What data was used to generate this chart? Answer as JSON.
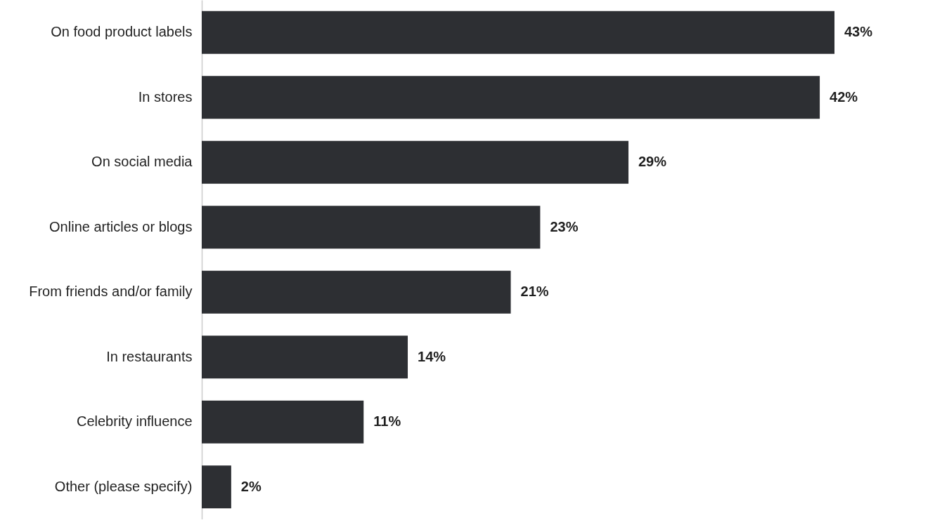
{
  "chart_data": {
    "type": "bar",
    "orientation": "horizontal",
    "categories": [
      "On food product labels",
      "In stores",
      "On social media",
      "Online articles or blogs",
      "From friends and/or family",
      "In restaurants",
      "Celebrity influence",
      "Other (please specify)"
    ],
    "values": [
      43,
      42,
      29,
      23,
      21,
      14,
      11,
      2
    ],
    "value_labels": [
      "43%",
      "42%",
      "29%",
      "23%",
      "21%",
      "14%",
      "11%",
      "2%"
    ],
    "color": "#2d2f33",
    "grid": false,
    "tick_labels": "y"
  }
}
